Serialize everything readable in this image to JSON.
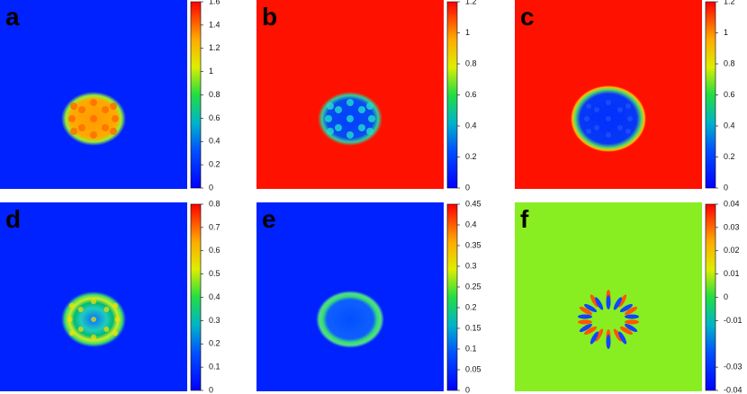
{
  "chart_data": [
    {
      "type": "heatmap",
      "label": "a",
      "ylim": [
        0,
        1.6
      ],
      "yticks": [
        0,
        0.2,
        0.4,
        0.6,
        0.8,
        1,
        1.2,
        1.4,
        1.6
      ]
    },
    {
      "type": "heatmap",
      "label": "b",
      "ylim": [
        0,
        1.2
      ],
      "yticks": [
        0,
        0.2,
        0.4,
        0.6,
        0.8,
        1,
        1.2
      ]
    },
    {
      "type": "heatmap",
      "label": "c",
      "ylim": [
        0,
        1.2
      ],
      "yticks": [
        0,
        0.2,
        0.4,
        0.6,
        0.8,
        1,
        1.2
      ]
    },
    {
      "type": "heatmap",
      "label": "d",
      "ylim": [
        0,
        0.8
      ],
      "yticks": [
        0,
        0.1,
        0.2,
        0.3,
        0.4,
        0.5,
        0.6,
        0.7,
        0.8
      ]
    },
    {
      "type": "heatmap",
      "label": "e",
      "ylim": [
        0,
        0.45
      ],
      "yticks": [
        0,
        0.05,
        0.1,
        0.15,
        0.2,
        0.25,
        0.3,
        0.35,
        0.4,
        0.45
      ]
    },
    {
      "type": "heatmap",
      "label": "f",
      "ylim": [
        -0.04,
        0.04
      ],
      "yticks": [
        -0.04,
        -0.03,
        -0.01,
        0,
        0.01,
        0.02,
        0.03,
        0.04
      ]
    }
  ]
}
